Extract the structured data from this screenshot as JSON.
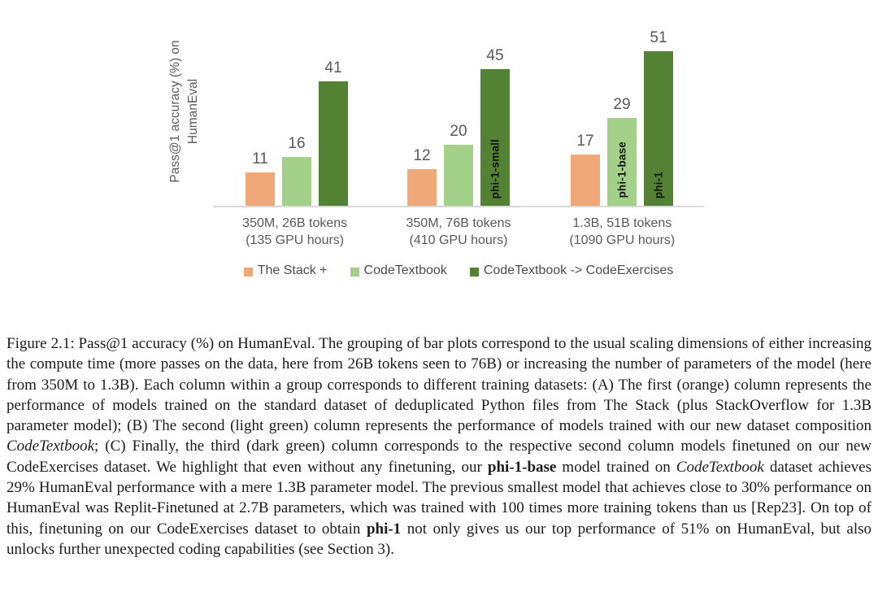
{
  "chart_data": {
    "type": "bar",
    "title": "",
    "ylabel_lines": [
      "Pass@1 accuracy (%) on",
      "HumanEval"
    ],
    "categories": [
      [
        "350M, 26B tokens",
        "(135 GPU hours)"
      ],
      [
        "350M, 76B tokens",
        "(410 GPU hours)"
      ],
      [
        "1.3B, 51B tokens",
        "(1090 GPU hours)"
      ]
    ],
    "series": [
      {
        "name": "The Stack +",
        "color": "#F0A878",
        "values": [
          11,
          12,
          17
        ]
      },
      {
        "name": "CodeTextbook",
        "color": "#A3D189",
        "values": [
          16,
          20,
          29
        ]
      },
      {
        "name": "CodeTextbook -> CodeExercises",
        "color": "#548235",
        "values": [
          41,
          45,
          51
        ]
      }
    ],
    "bar_annotations": [
      {
        "group": 1,
        "series": 2,
        "text": "phi-1-small"
      },
      {
        "group": 2,
        "series": 1,
        "text": "phi-1-base"
      },
      {
        "group": 2,
        "series": 2,
        "text": "phi-1"
      }
    ],
    "value_labels_shown": true,
    "ylim": [
      0,
      55
    ],
    "grid": false,
    "legend_position": "bottom",
    "axis_line_color": "#d9d9d9",
    "label_color": "#595959"
  },
  "caption": {
    "runs": [
      {
        "style": "normal",
        "text": "Figure 2.1:  Pass@1 accuracy (%) on HumanEval.  The grouping of bar plots correspond to the usual scaling dimensions of either increasing the compute time (more passes on the data, here from 26B tokens seen to 76B) or increasing the number of parameters of the model (here from 350M to 1.3B). Each column within a group corresponds to different training datasets: (A) The first (orange) column represents the performance of models trained on the standard dataset of deduplicated Python files from The Stack (plus StackOverflow for 1.3B parameter model); (B) The second (light green) column represents the performance of models trained with our new dataset composition "
      },
      {
        "style": "italic",
        "text": "CodeTextbook"
      },
      {
        "style": "normal",
        "text": "; (C) Finally, the third (dark green) column corresponds to the respective second column models finetuned on our new CodeExercises dataset. We highlight that even without any finetuning, our "
      },
      {
        "style": "bold",
        "text": "phi-1-base"
      },
      {
        "style": "normal",
        "text": " model trained on "
      },
      {
        "style": "italic",
        "text": "CodeTextbook"
      },
      {
        "style": "normal",
        "text": " dataset achieves 29% HumanEval performance with a mere 1.3B parameter model. The previous smallest model that achieves close to 30% performance on HumanEval was Replit-Finetuned at 2.7B parameters, which was trained with 100 times more training tokens than us [Rep23]. On top of this, finetuning on our CodeExercises dataset to obtain "
      },
      {
        "style": "bold",
        "text": "phi-1"
      },
      {
        "style": "normal",
        "text": " not only gives us our top performance of 51% on HumanEval, but also unlocks further unexpected coding capabilities (see Section 3)."
      }
    ]
  }
}
